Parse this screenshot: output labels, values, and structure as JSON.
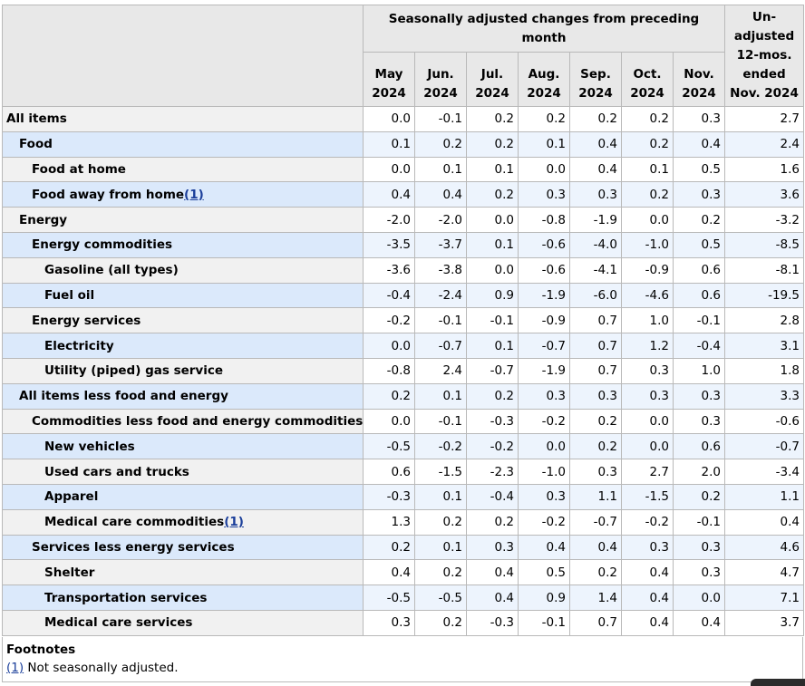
{
  "header": {
    "span_title": "Seasonally adjusted changes from preceding month",
    "unadjusted_title": [
      "Un-",
      "adjusted",
      "12-mos.",
      "ended",
      "Nov. 2024"
    ],
    "months": [
      {
        "m": "May",
        "y": "2024"
      },
      {
        "m": "Jun.",
        "y": "2024"
      },
      {
        "m": "Jul.",
        "y": "2024"
      },
      {
        "m": "Aug.",
        "y": "2024"
      },
      {
        "m": "Sep.",
        "y": "2024"
      },
      {
        "m": "Oct.",
        "y": "2024"
      },
      {
        "m": "Nov.",
        "y": "2024"
      }
    ]
  },
  "rows": [
    {
      "label": "All items",
      "level": 0,
      "footnote": "",
      "values": [
        "0.0",
        "-0.1",
        "0.2",
        "0.2",
        "0.2",
        "0.2",
        "0.3"
      ],
      "unadj": "2.7"
    },
    {
      "label": "Food",
      "level": 1,
      "footnote": "",
      "values": [
        "0.1",
        "0.2",
        "0.2",
        "0.1",
        "0.4",
        "0.2",
        "0.4"
      ],
      "unadj": "2.4"
    },
    {
      "label": "Food at home",
      "level": 2,
      "footnote": "",
      "values": [
        "0.0",
        "0.1",
        "0.1",
        "0.0",
        "0.4",
        "0.1",
        "0.5"
      ],
      "unadj": "1.6"
    },
    {
      "label": "Food away from home",
      "level": 2,
      "footnote": "(1)",
      "values": [
        "0.4",
        "0.4",
        "0.2",
        "0.3",
        "0.3",
        "0.2",
        "0.3"
      ],
      "unadj": "3.6"
    },
    {
      "label": "Energy",
      "level": 1,
      "footnote": "",
      "values": [
        "-2.0",
        "-2.0",
        "0.0",
        "-0.8",
        "-1.9",
        "0.0",
        "0.2"
      ],
      "unadj": "-3.2"
    },
    {
      "label": "Energy commodities",
      "level": 2,
      "footnote": "",
      "values": [
        "-3.5",
        "-3.7",
        "0.1",
        "-0.6",
        "-4.0",
        "-1.0",
        "0.5"
      ],
      "unadj": "-8.5"
    },
    {
      "label": "Gasoline (all types)",
      "level": 3,
      "footnote": "",
      "values": [
        "-3.6",
        "-3.8",
        "0.0",
        "-0.6",
        "-4.1",
        "-0.9",
        "0.6"
      ],
      "unadj": "-8.1"
    },
    {
      "label": "Fuel oil",
      "level": 3,
      "footnote": "",
      "values": [
        "-0.4",
        "-2.4",
        "0.9",
        "-1.9",
        "-6.0",
        "-4.6",
        "0.6"
      ],
      "unadj": "-19.5"
    },
    {
      "label": "Energy services",
      "level": 2,
      "footnote": "",
      "values": [
        "-0.2",
        "-0.1",
        "-0.1",
        "-0.9",
        "0.7",
        "1.0",
        "-0.1"
      ],
      "unadj": "2.8"
    },
    {
      "label": "Electricity",
      "level": 3,
      "footnote": "",
      "values": [
        "0.0",
        "-0.7",
        "0.1",
        "-0.7",
        "0.7",
        "1.2",
        "-0.4"
      ],
      "unadj": "3.1"
    },
    {
      "label": "Utility (piped) gas service",
      "level": 3,
      "footnote": "",
      "values": [
        "-0.8",
        "2.4",
        "-0.7",
        "-1.9",
        "0.7",
        "0.3",
        "1.0"
      ],
      "unadj": "1.8"
    },
    {
      "label": "All items less food and energy",
      "level": 1,
      "footnote": "",
      "values": [
        "0.2",
        "0.1",
        "0.2",
        "0.3",
        "0.3",
        "0.3",
        "0.3"
      ],
      "unadj": "3.3"
    },
    {
      "label": "Commodities less food and energy commodities",
      "level": 2,
      "footnote": "",
      "values": [
        "0.0",
        "-0.1",
        "-0.3",
        "-0.2",
        "0.2",
        "0.0",
        "0.3"
      ],
      "unadj": "-0.6"
    },
    {
      "label": "New vehicles",
      "level": 3,
      "footnote": "",
      "values": [
        "-0.5",
        "-0.2",
        "-0.2",
        "0.0",
        "0.2",
        "0.0",
        "0.6"
      ],
      "unadj": "-0.7"
    },
    {
      "label": "Used cars and trucks",
      "level": 3,
      "footnote": "",
      "values": [
        "0.6",
        "-1.5",
        "-2.3",
        "-1.0",
        "0.3",
        "2.7",
        "2.0"
      ],
      "unadj": "-3.4"
    },
    {
      "label": "Apparel",
      "level": 3,
      "footnote": "",
      "values": [
        "-0.3",
        "0.1",
        "-0.4",
        "0.3",
        "1.1",
        "-1.5",
        "0.2"
      ],
      "unadj": "1.1"
    },
    {
      "label": "Medical care commodities",
      "level": 3,
      "footnote": "(1)",
      "values": [
        "1.3",
        "0.2",
        "0.2",
        "-0.2",
        "-0.7",
        "-0.2",
        "-0.1"
      ],
      "unadj": "0.4"
    },
    {
      "label": "Services less energy services",
      "level": 2,
      "footnote": "",
      "values": [
        "0.2",
        "0.1",
        "0.3",
        "0.4",
        "0.4",
        "0.3",
        "0.3"
      ],
      "unadj": "4.6"
    },
    {
      "label": "Shelter",
      "level": 3,
      "footnote": "",
      "values": [
        "0.4",
        "0.2",
        "0.4",
        "0.5",
        "0.2",
        "0.4",
        "0.3"
      ],
      "unadj": "4.7"
    },
    {
      "label": "Transportation services",
      "level": 3,
      "footnote": "",
      "values": [
        "-0.5",
        "-0.5",
        "0.4",
        "0.9",
        "1.4",
        "0.4",
        "0.0"
      ],
      "unadj": "7.1"
    },
    {
      "label": "Medical care services",
      "level": 3,
      "footnote": "",
      "values": [
        "0.3",
        "0.2",
        "-0.3",
        "-0.1",
        "0.7",
        "0.4",
        "0.4"
      ],
      "unadj": "3.7"
    }
  ],
  "footnotes": {
    "title": "Footnotes",
    "items": [
      {
        "ref": "(1)",
        "text": " Not seasonally adjusted."
      }
    ]
  }
}
